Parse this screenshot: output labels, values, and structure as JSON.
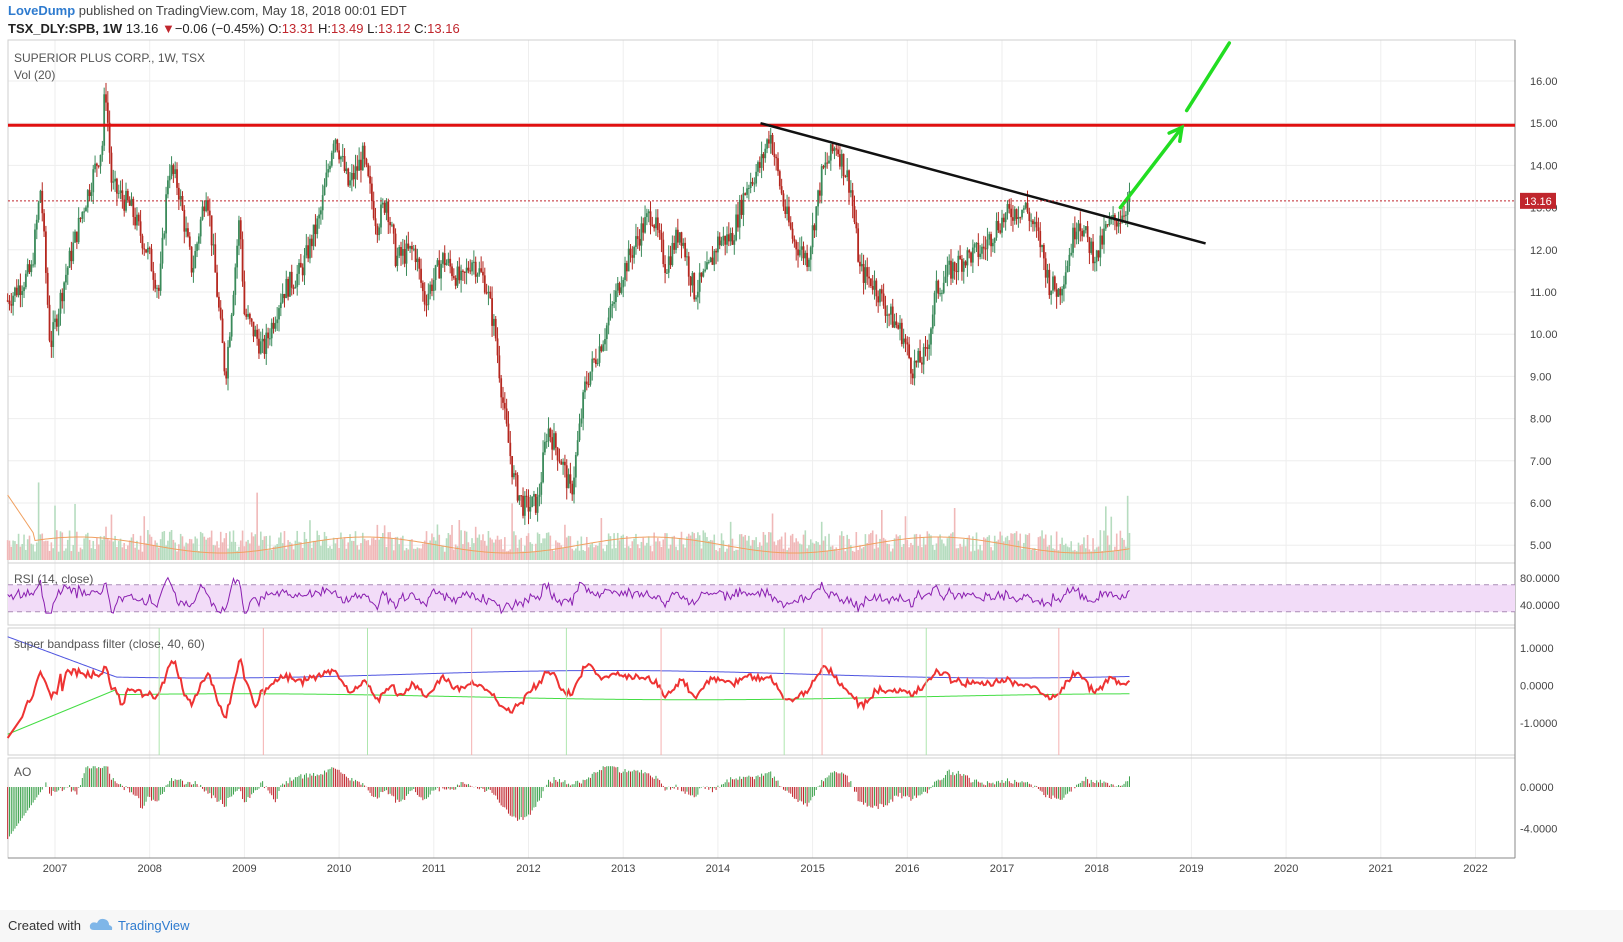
{
  "header": {
    "author": "LoveDump",
    "published": " published on TradingView.com, May 18, 2018 00:01 EDT",
    "symbol": "TSX_DLY:SPB, 1W",
    "last": "13.16",
    "change": "−0.06 (−0.45%)",
    "o_label": "O:",
    "o_value": "13.31",
    "h_label": "H:",
    "h_value": "13.49",
    "l_label": "L:",
    "l_value": "13.12",
    "c_label": "C:",
    "c_value": "13.16"
  },
  "footer": {
    "created_with": "Created with",
    "brand": "TradingView"
  },
  "colors": {
    "up": "#3a8a5a",
    "down": "#b5271f",
    "resistance": "#e01010",
    "trendline": "#111111",
    "arrow": "#22dd22",
    "rsi": "#8a1fb0",
    "rsi_band": "#f2dcf8",
    "filter": "#ee3333",
    "filter_upper": "#4f55e0",
    "filter_lower": "#44dd44",
    "volume_ma": "#f0a060",
    "price_label": "#c0262d"
  },
  "chart_data": [
    {
      "type": "candlestick",
      "title": "SUPERIOR PLUS CORP., 1W, TSX",
      "subtitle": "Vol (20)",
      "x_ticks": [
        "2007",
        "2008",
        "2009",
        "2010",
        "2011",
        "2012",
        "2013",
        "2014",
        "2015",
        "2016",
        "2017",
        "2018",
        "2019",
        "2020",
        "2021",
        "2022"
      ],
      "y_ticks": [
        "16.00",
        "15.00",
        "14.00",
        "13.00",
        "12.00",
        "11.00",
        "10.00",
        "9.00",
        "8.00",
        "7.00",
        "6.00",
        "5.00"
      ],
      "ylim": [
        4.7,
        16.8
      ],
      "last_price": "13.16",
      "price_path": [
        [
          2006.5,
          10.8
        ],
        [
          2006.75,
          11.5
        ],
        [
          2006.85,
          13.5
        ],
        [
          2006.95,
          9.7
        ],
        [
          2007.1,
          11.3
        ],
        [
          2007.3,
          13.0
        ],
        [
          2007.5,
          14.5
        ],
        [
          2007.53,
          16.0
        ],
        [
          2007.6,
          13.5
        ],
        [
          2007.8,
          13.0
        ],
        [
          2008.0,
          11.8
        ],
        [
          2008.1,
          11.0
        ],
        [
          2008.2,
          14.0
        ],
        [
          2008.3,
          13.5
        ],
        [
          2008.45,
          11.5
        ],
        [
          2008.6,
          13.5
        ],
        [
          2008.8,
          9.0
        ],
        [
          2008.95,
          12.8
        ],
        [
          2009.0,
          10.5
        ],
        [
          2009.2,
          9.6
        ],
        [
          2009.4,
          11.0
        ],
        [
          2009.6,
          11.5
        ],
        [
          2009.8,
          12.8
        ],
        [
          2009.95,
          14.8
        ],
        [
          2010.1,
          13.5
        ],
        [
          2010.25,
          14.2
        ],
        [
          2010.4,
          12.6
        ],
        [
          2010.5,
          13.2
        ],
        [
          2010.6,
          11.8
        ],
        [
          2010.8,
          12.0
        ],
        [
          2010.9,
          10.8
        ],
        [
          2011.1,
          11.8
        ],
        [
          2011.3,
          11.2
        ],
        [
          2011.4,
          11.8
        ],
        [
          2011.55,
          11.2
        ],
        [
          2011.65,
          10.0
        ],
        [
          2011.75,
          8.0
        ],
        [
          2011.85,
          6.5
        ],
        [
          2011.95,
          5.9
        ],
        [
          2012.1,
          6.0
        ],
        [
          2012.2,
          7.8
        ],
        [
          2012.35,
          7.0
        ],
        [
          2012.45,
          6.2
        ],
        [
          2012.6,
          8.8
        ],
        [
          2012.8,
          10.0
        ],
        [
          2013.0,
          11.5
        ],
        [
          2013.2,
          12.5
        ],
        [
          2013.3,
          12.9
        ],
        [
          2013.45,
          11.6
        ],
        [
          2013.6,
          12.5
        ],
        [
          2013.75,
          11.0
        ],
        [
          2013.9,
          11.5
        ],
        [
          2014.0,
          12.2
        ],
        [
          2014.15,
          12.3
        ],
        [
          2014.3,
          13.5
        ],
        [
          2014.45,
          14.0
        ],
        [
          2014.55,
          14.8
        ],
        [
          2014.7,
          13.0
        ],
        [
          2014.8,
          12.2
        ],
        [
          2014.95,
          11.8
        ],
        [
          2015.1,
          13.8
        ],
        [
          2015.25,
          14.5
        ],
        [
          2015.4,
          13.5
        ],
        [
          2015.5,
          11.5
        ],
        [
          2015.65,
          11.2
        ],
        [
          2015.8,
          10.5
        ],
        [
          2015.95,
          10.0
        ],
        [
          2016.05,
          9.2
        ],
        [
          2016.2,
          9.5
        ],
        [
          2016.3,
          11.0
        ],
        [
          2016.45,
          11.5
        ],
        [
          2016.6,
          11.8
        ],
        [
          2016.8,
          12.0
        ],
        [
          2016.95,
          12.6
        ],
        [
          2017.1,
          12.9
        ],
        [
          2017.25,
          13.0
        ],
        [
          2017.4,
          12.2
        ],
        [
          2017.5,
          11.2
        ],
        [
          2017.6,
          11.0
        ],
        [
          2017.7,
          11.8
        ],
        [
          2017.8,
          12.8
        ],
        [
          2017.9,
          12.2
        ],
        [
          2018.0,
          11.8
        ],
        [
          2018.1,
          12.5
        ],
        [
          2018.25,
          12.8
        ],
        [
          2018.35,
          13.2
        ]
      ],
      "resistance": 14.95,
      "trendline": [
        [
          2014.45,
          15.0
        ],
        [
          2019.15,
          12.15
        ]
      ],
      "arrows": [
        [
          [
            2018.25,
            13.0
          ],
          [
            2018.9,
            14.9
          ]
        ],
        [
          [
            2018.95,
            15.3
          ],
          [
            2019.4,
            16.9
          ]
        ]
      ]
    },
    {
      "type": "line",
      "title": "RSI (14, close)",
      "y_ticks": [
        "80.0000",
        "40.0000"
      ],
      "band": [
        30,
        70
      ],
      "ylim": [
        25,
        85
      ]
    },
    {
      "type": "line",
      "title": "super bandpass filter (close, 40, 60)",
      "y_ticks": [
        "1.0000",
        "0.0000",
        "-1.0000"
      ],
      "ylim": [
        -1.8,
        1.5
      ]
    },
    {
      "type": "bar",
      "title": "AO",
      "y_ticks": [
        "0.0000",
        "-4.0000"
      ],
      "ylim": [
        -6.5,
        2.2
      ]
    }
  ]
}
